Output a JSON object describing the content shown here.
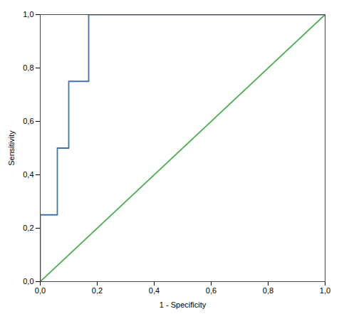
{
  "chart_data": {
    "type": "line",
    "xlabel": "1 - Specificity",
    "ylabel": "Sensitivity",
    "series": [
      {
        "color": "#4caf50",
        "x": [
          0.0,
          1.0
        ],
        "values": [
          0.0,
          1.0
        ]
      },
      {
        "color": "#4472a8",
        "x": [
          0.0,
          0.0,
          0.04,
          0.06,
          0.06,
          0.1,
          0.1,
          0.17,
          0.17,
          0.3,
          0.3,
          1.0
        ],
        "values": [
          0.0,
          0.25,
          0.25,
          0.25,
          0.5,
          0.5,
          0.75,
          0.75,
          1.0,
          1.0,
          1.0,
          1.0
        ]
      }
    ],
    "xlim": [
      0.0,
      1.0
    ],
    "ylim": [
      0.0,
      1.0
    ],
    "xticks": [
      {
        "value": 0.0,
        "label": "0,0"
      },
      {
        "value": 0.2,
        "label": "0,2"
      },
      {
        "value": 0.4,
        "label": "0,4"
      },
      {
        "value": 0.6,
        "label": "0,6"
      },
      {
        "value": 0.8,
        "label": "0,8"
      },
      {
        "value": 1.0,
        "label": "1,0"
      }
    ],
    "yticks": [
      {
        "value": 0.0,
        "label": "0,0"
      },
      {
        "value": 0.2,
        "label": "0,2"
      },
      {
        "value": 0.4,
        "label": "0,4"
      },
      {
        "value": 0.6,
        "label": "0,6"
      },
      {
        "value": 0.8,
        "label": "0,8"
      },
      {
        "value": 1.0,
        "label": "1,0"
      }
    ],
    "grid": false
  }
}
